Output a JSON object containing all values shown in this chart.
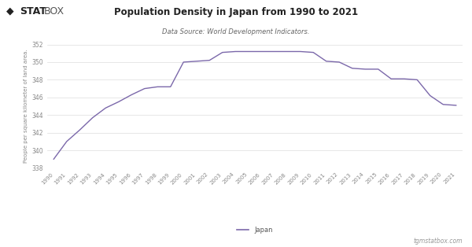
{
  "title": "Population Density in Japan from 1990 to 2021",
  "subtitle": "Data Source: World Development Indicators.",
  "ylabel": "People per square kilometer of land area.",
  "legend_label": "Japan",
  "watermark": "tgmstatbox.com",
  "line_color": "#7B68AA",
  "background_color": "#ffffff",
  "grid_color": "#dddddd",
  "years": [
    1990,
    1991,
    1992,
    1993,
    1994,
    1995,
    1996,
    1997,
    1998,
    1999,
    2000,
    2001,
    2002,
    2003,
    2004,
    2005,
    2006,
    2007,
    2008,
    2009,
    2010,
    2011,
    2012,
    2013,
    2014,
    2015,
    2016,
    2017,
    2018,
    2019,
    2020,
    2021
  ],
  "values": [
    339.0,
    341.0,
    342.3,
    343.7,
    344.8,
    345.5,
    346.3,
    347.0,
    347.2,
    347.2,
    350.0,
    350.1,
    350.2,
    351.1,
    351.2,
    351.2,
    351.2,
    351.2,
    351.2,
    351.2,
    351.1,
    350.1,
    350.0,
    349.3,
    349.2,
    349.2,
    348.1,
    348.1,
    348.0,
    346.2,
    345.2,
    345.1
  ],
  "ylim_min": 338,
  "ylim_max": 352,
  "yticks": [
    338,
    340,
    342,
    344,
    346,
    348,
    350,
    352
  ],
  "logo_diamond": "◆",
  "logo_stat": "STAT",
  "logo_box": "BOX"
}
